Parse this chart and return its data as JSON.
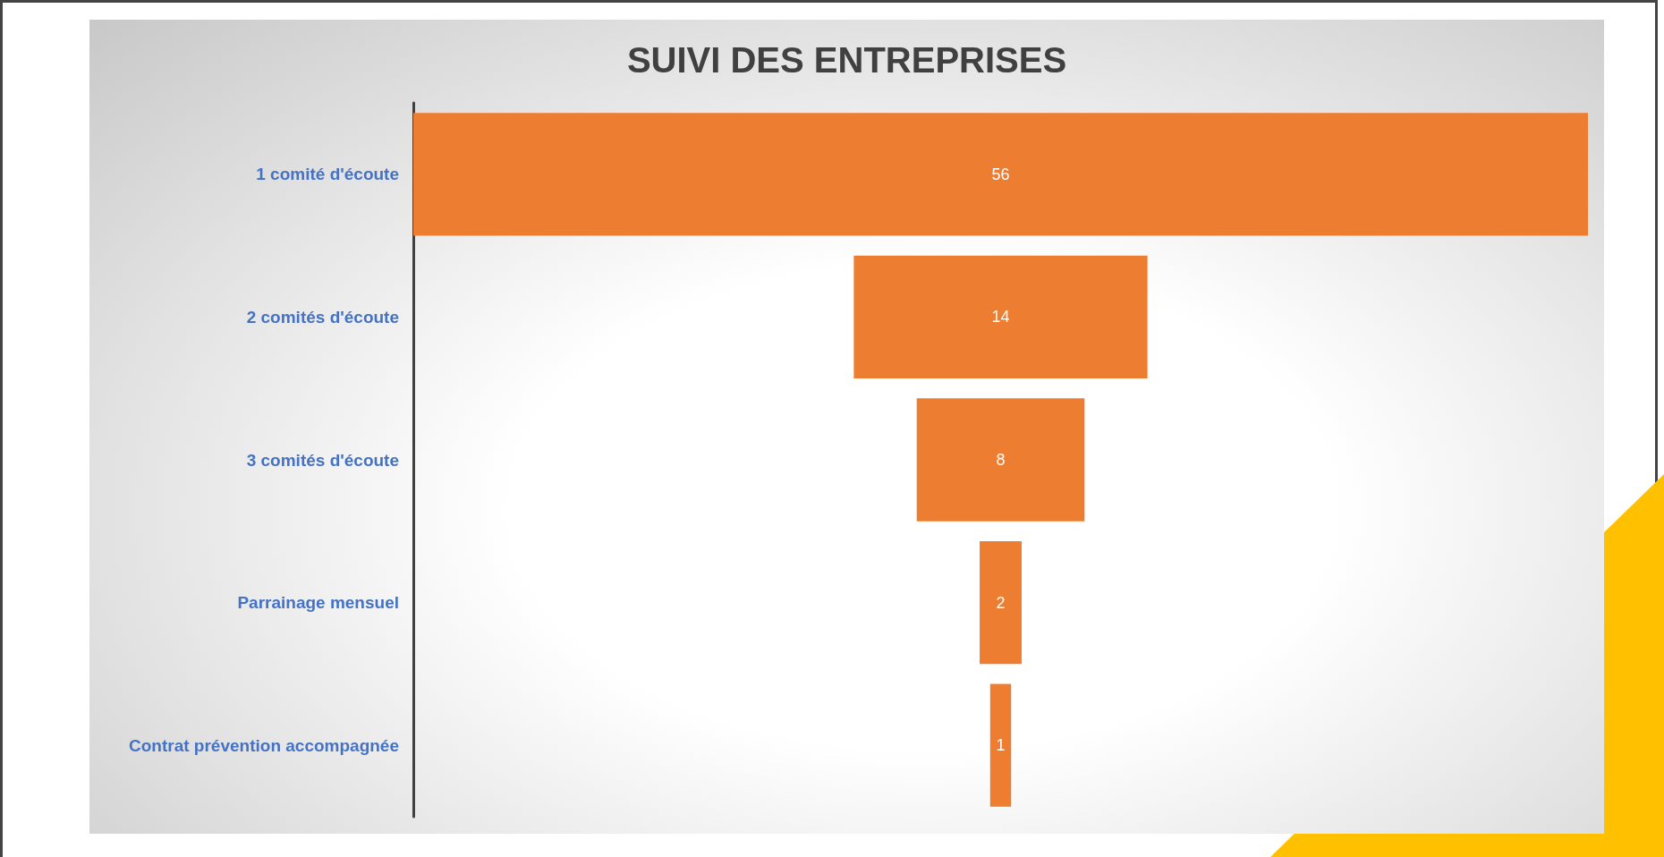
{
  "chart_data": {
    "type": "other",
    "title": "SUIVI DES ENTREPRISES",
    "categories": [
      "1 comité d'écoute",
      "2 comités d'écoute",
      "3 comités d'écoute",
      "Parrainage mensuel",
      "Contrat prévention accompagnée"
    ],
    "values": [
      56,
      14,
      8,
      2,
      1
    ],
    "color": "#ed7d31",
    "data_labels": true
  }
}
